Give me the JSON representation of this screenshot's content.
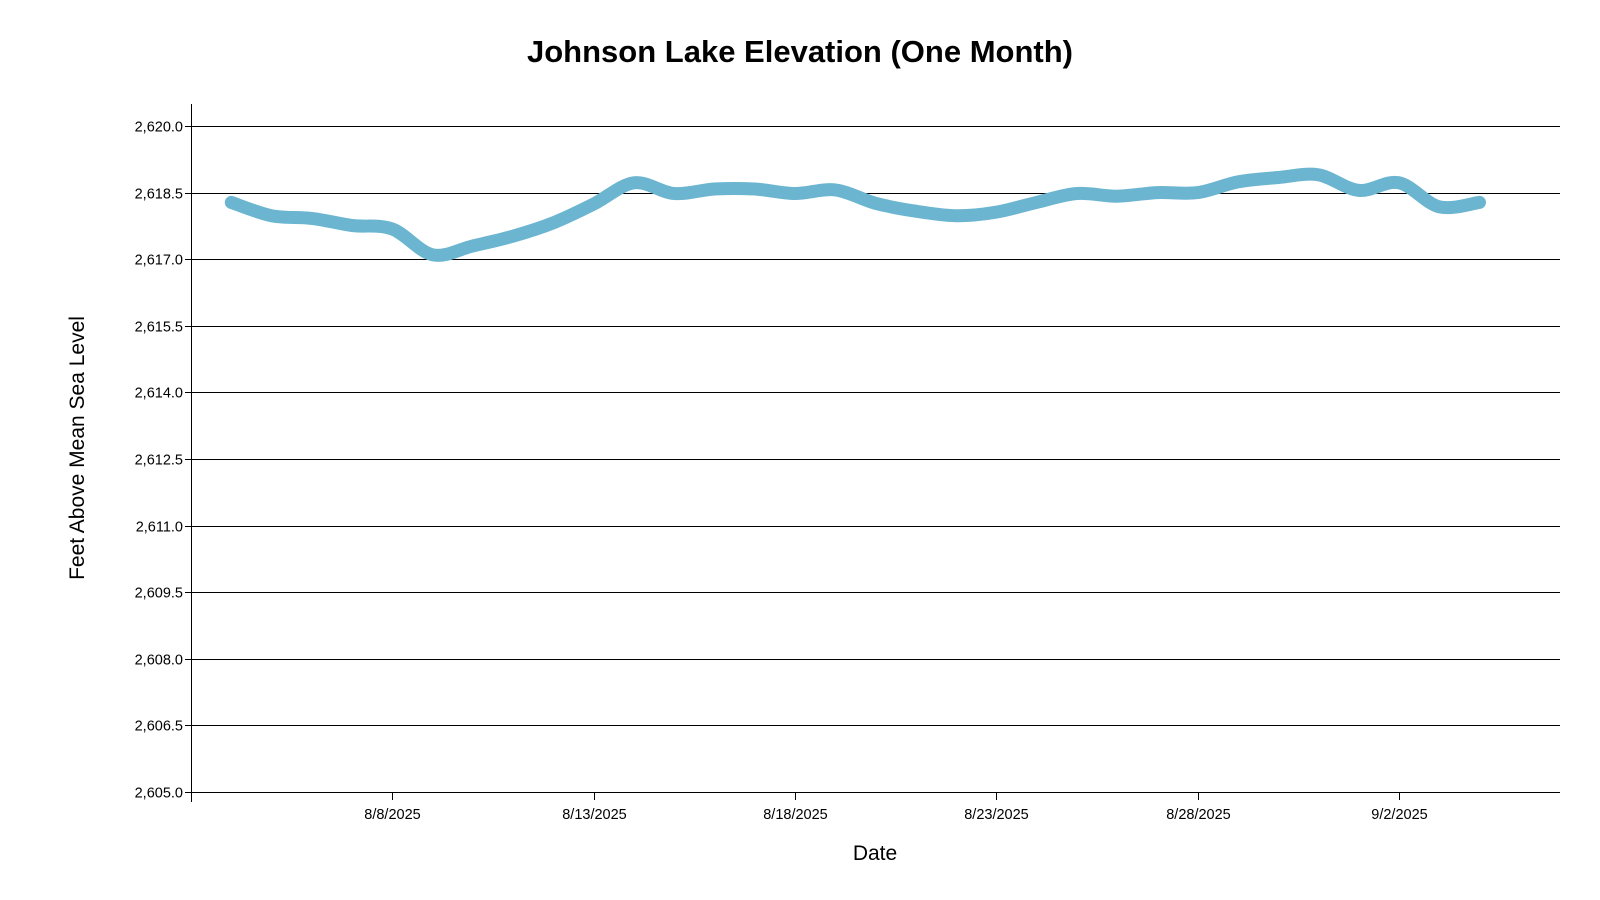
{
  "chart_data": {
    "type": "line",
    "title": "Johnson Lake Elevation (One Month)",
    "xlabel": "Date",
    "ylabel": "Feet Above Mean Sea Level",
    "ylim": [
      2605.0,
      2620.0
    ],
    "xlim": [
      "2025-08-03",
      "2025-09-06"
    ],
    "y_ticks": [
      2605.0,
      2606.5,
      2608.0,
      2609.5,
      2611.0,
      2612.5,
      2614.0,
      2615.5,
      2617.0,
      2618.5,
      2620.0
    ],
    "y_tick_labels": [
      "2,605.0",
      "2,606.5",
      "2,608.0",
      "2,609.5",
      "2,611.0",
      "2,612.5",
      "2,614.0",
      "2,615.5",
      "2,617.0",
      "2,618.5",
      "2,620.0"
    ],
    "x_ticks": [
      "2025-08-08",
      "2025-08-13",
      "2025-08-18",
      "2025-08-23",
      "2025-08-28",
      "2025-09-02"
    ],
    "x_tick_labels": [
      "8/8/2025",
      "8/13/2025",
      "8/18/2025",
      "8/23/2025",
      "8/28/2025",
      "9/2/2025"
    ],
    "grid": true,
    "legend": "none",
    "line_color": "#6BB5D0",
    "series": [
      {
        "x": [
          "2025-08-04",
          "2025-08-05",
          "2025-08-06",
          "2025-08-07",
          "2025-08-08",
          "2025-08-09",
          "2025-08-10",
          "2025-08-11",
          "2025-08-12",
          "2025-08-13",
          "2025-08-14",
          "2025-08-15",
          "2025-08-16",
          "2025-08-17",
          "2025-08-18",
          "2025-08-19",
          "2025-08-20",
          "2025-08-21",
          "2025-08-22",
          "2025-08-23",
          "2025-08-24",
          "2025-08-25",
          "2025-08-26",
          "2025-08-27",
          "2025-08-28",
          "2025-08-29",
          "2025-08-30",
          "2025-08-31",
          "2025-09-01",
          "2025-09-02",
          "2025-09-03",
          "2025-09-04"
        ],
        "values": [
          2618.28,
          2617.98,
          2617.92,
          2617.76,
          2617.68,
          2617.1,
          2617.3,
          2617.52,
          2617.82,
          2618.24,
          2618.72,
          2618.48,
          2618.58,
          2618.58,
          2618.48,
          2618.56,
          2618.26,
          2618.08,
          2617.98,
          2618.06,
          2618.28,
          2618.48,
          2618.42,
          2618.5,
          2618.5,
          2618.74,
          2618.84,
          2618.9,
          2618.55,
          2618.72,
          2618.18,
          2618.28
        ]
      }
    ]
  }
}
